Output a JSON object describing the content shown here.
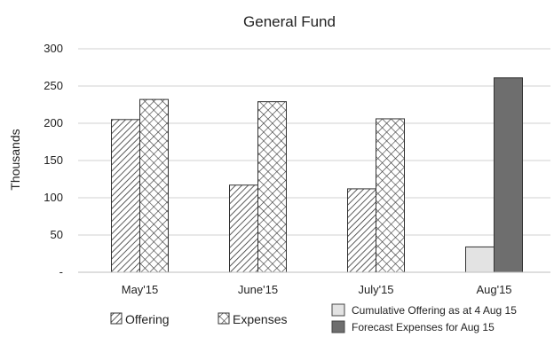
{
  "chart_data": {
    "type": "bar",
    "title": "General Fund",
    "xlabel": "",
    "ylabel": "Thousands",
    "ylim": [
      0,
      300
    ],
    "yticks": [
      0,
      50,
      100,
      150,
      200,
      250,
      300
    ],
    "ytick_labels": [
      "-",
      "50",
      "100",
      "150",
      "200",
      "250",
      "300"
    ],
    "grid": true,
    "categories": [
      "May'15",
      "June'15",
      "July'15",
      "Aug'15"
    ],
    "series": [
      {
        "name": "Offering",
        "values": [
          205,
          117,
          112,
          null
        ],
        "fill": "hatch-diagonal",
        "color": "#333333"
      },
      {
        "name": "Expenses",
        "values": [
          232,
          229,
          206,
          null
        ],
        "fill": "hatch-cross",
        "color": "#333333"
      },
      {
        "name": "Cumulative Offering as at 4 Aug 15",
        "values": [
          null,
          null,
          null,
          34
        ],
        "fill": "solid",
        "color": "#e3e3e3"
      },
      {
        "name": "Forecast Expenses for Aug 15",
        "values": [
          null,
          null,
          null,
          261
        ],
        "fill": "solid",
        "color": "#6e6e6e"
      }
    ],
    "legend_position": "bottom"
  }
}
